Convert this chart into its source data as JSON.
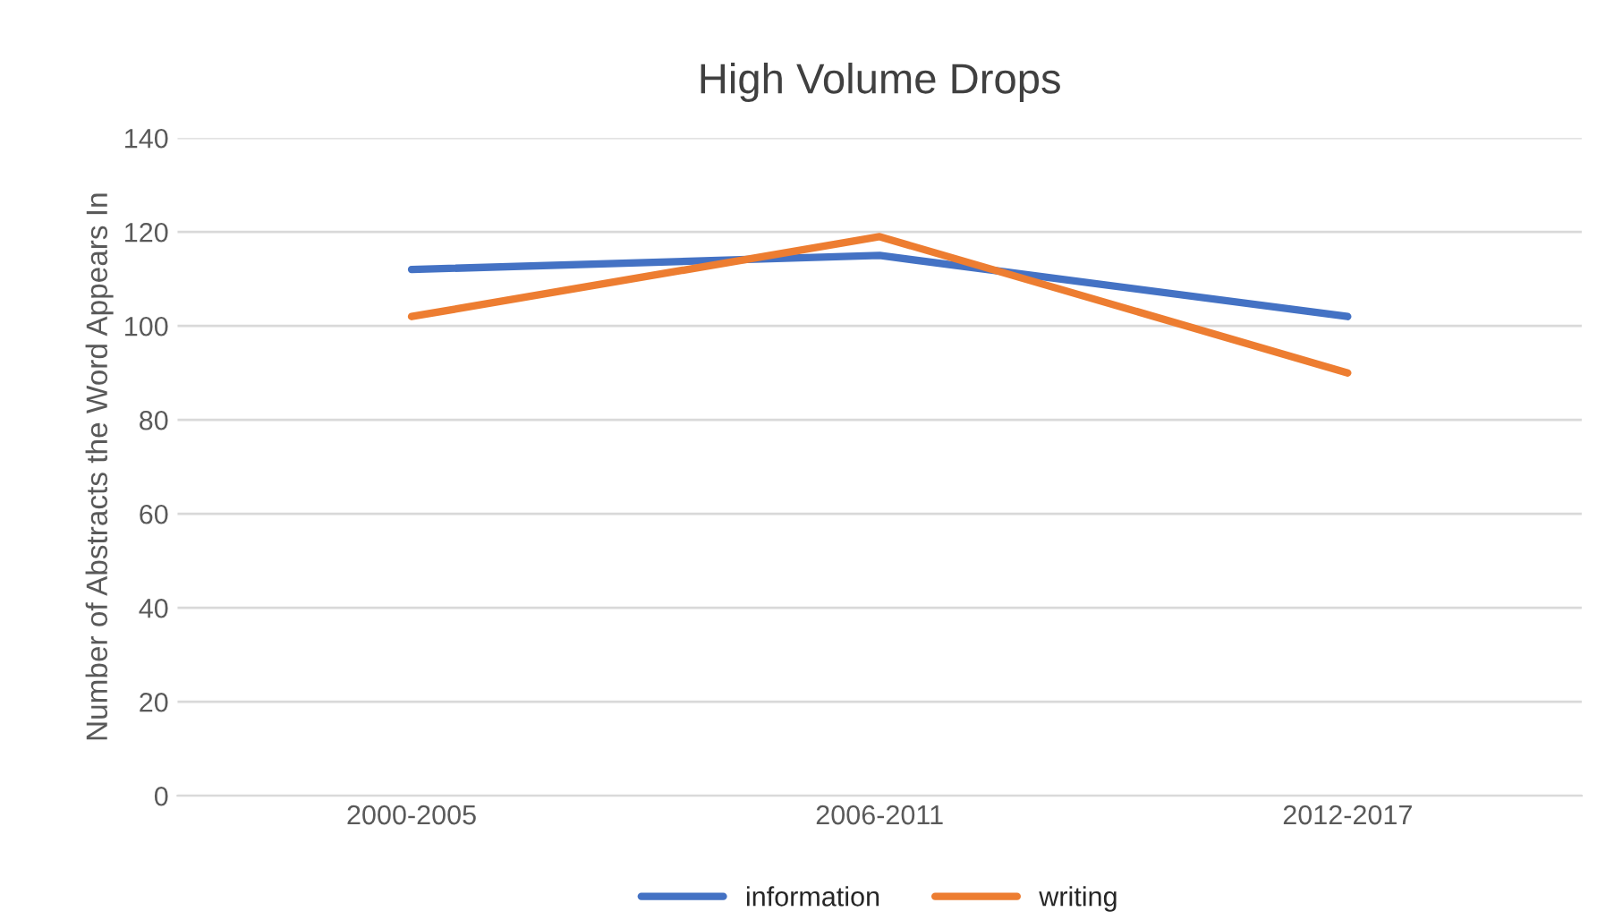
{
  "chart_data": {
    "type": "line",
    "title": "High Volume Drops",
    "ylabel": "Number of Abstracts the Word Appears In",
    "categories": [
      "2000-2005",
      "2006-2011",
      "2012-2017"
    ],
    "series": [
      {
        "name": "information",
        "color": "#4472c4",
        "values": [
          112,
          115,
          102
        ]
      },
      {
        "name": "writing",
        "color": "#ed7d31",
        "values": [
          102,
          119,
          90
        ]
      }
    ],
    "ylim": [
      0,
      140
    ],
    "yticks": [
      0,
      20,
      40,
      60,
      80,
      100,
      120,
      140
    ],
    "grid": "y",
    "legend": "bottom",
    "marker": "none",
    "line_style": "solid"
  }
}
